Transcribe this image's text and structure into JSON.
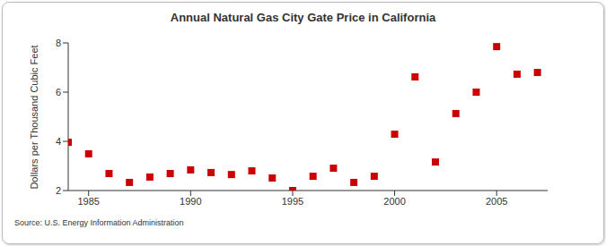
{
  "chart_data": {
    "type": "scatter",
    "title": "Annual Natural Gas City Gate Price in California",
    "y_label": "Dollars per Thousand Cubic Feet",
    "source": "Source: U.S. Energy Information Administration",
    "x": [
      1984,
      1985,
      1986,
      1987,
      1988,
      1989,
      1990,
      1991,
      1992,
      1993,
      1994,
      1995,
      1996,
      1997,
      1998,
      1999,
      2000,
      2001,
      2002,
      2003,
      2004,
      2005,
      2006,
      2007
    ],
    "values": [
      3.96,
      3.49,
      2.69,
      2.33,
      2.55,
      2.69,
      2.84,
      2.73,
      2.65,
      2.8,
      2.51,
      2.0,
      2.58,
      2.91,
      2.33,
      2.58,
      4.29,
      6.62,
      3.16,
      5.13,
      6.0,
      7.85,
      6.73,
      6.8
    ],
    "color": "#cc0000",
    "marker": "square",
    "xlim": [
      1984,
      2007.5
    ],
    "xticks": [
      1985,
      1990,
      1995,
      2000,
      2005
    ],
    "ylim": [
      2,
      8
    ],
    "yticks": [
      2,
      4,
      6,
      8
    ],
    "grid": false
  }
}
